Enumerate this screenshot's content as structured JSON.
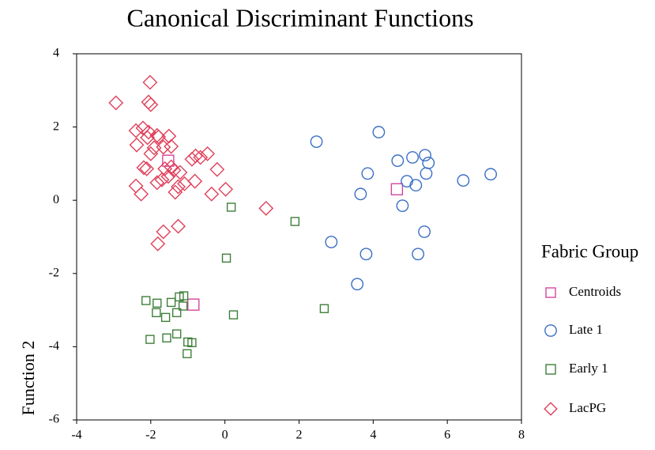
{
  "chart_data": {
    "type": "scatter",
    "title": "Canonical Discriminant Functions",
    "y_label": "Function 2",
    "legend_title": "Fabric Group",
    "legend_position": "right",
    "xlim": [
      -4,
      8
    ],
    "xticks": [
      -4,
      -2,
      0,
      2,
      4,
      6,
      8
    ],
    "ylim": [
      -6,
      4
    ],
    "yticks": [
      -6,
      -4,
      -2,
      0,
      2,
      4
    ],
    "series": [
      {
        "name": "Centroids",
        "color": "#d6469c",
        "marker": "square",
        "x": [
          -1.53,
          4.64,
          -0.85
        ],
        "values": [
          1.08,
          0.3,
          -2.85
        ]
      },
      {
        "name": "Late 1",
        "color": "#3a6fc4",
        "marker": "circle",
        "x": [
          2.47,
          4.15,
          4.66,
          5.06,
          5.4,
          5.49,
          5.43,
          3.85,
          4.91,
          5.15,
          6.43,
          7.17,
          3.66,
          4.79,
          2.87,
          3.81,
          5.21,
          5.38,
          3.57
        ],
        "values": [
          1.6,
          1.86,
          1.08,
          1.17,
          1.23,
          1.02,
          0.73,
          0.73,
          0.52,
          0.41,
          0.54,
          0.71,
          0.17,
          -0.15,
          -1.14,
          -1.47,
          -1.47,
          -0.86,
          -2.29
        ]
      },
      {
        "name": "Early 1",
        "color": "#3f7f3a",
        "marker": "square",
        "x": [
          0.17,
          1.89,
          0.04,
          2.68,
          0.23,
          -2.13,
          -1.83,
          -1.45,
          -1.23,
          -1.11,
          -1.13,
          -1.85,
          -1.3,
          -1.6,
          -2.02,
          -1.57,
          -1.3,
          -1.0,
          -0.89,
          -1.02
        ],
        "values": [
          -0.19,
          -0.58,
          -1.58,
          -2.96,
          -3.13,
          -2.74,
          -2.81,
          -2.79,
          -2.64,
          -2.61,
          -2.89,
          -3.07,
          -3.07,
          -3.2,
          -3.8,
          -3.76,
          -3.65,
          -3.87,
          -3.89,
          -4.19
        ]
      },
      {
        "name": "LacPG",
        "color": "#e0405a",
        "marker": "diamond",
        "x": [
          -2.94,
          -2.02,
          -2.06,
          -2.0,
          -2.4,
          -2.21,
          -2.06,
          -2.09,
          -1.83,
          -1.79,
          -1.51,
          -2.38,
          -1.91,
          -2.0,
          -1.66,
          -1.45,
          -0.47,
          -0.79,
          -0.66,
          -0.89,
          -2.19,
          -2.11,
          -1.62,
          -1.45,
          -1.38,
          -1.21,
          -0.21,
          -1.83,
          -1.7,
          -1.53,
          -1.09,
          -0.81,
          -1.26,
          -2.4,
          -2.26,
          -1.34,
          -0.36,
          0.02,
          1.11,
          -1.26,
          -1.66,
          -1.81
        ],
        "values": [
          2.66,
          3.22,
          2.68,
          2.61,
          1.9,
          1.97,
          1.86,
          1.71,
          1.77,
          1.73,
          1.75,
          1.51,
          1.43,
          1.27,
          1.45,
          1.47,
          1.27,
          1.21,
          1.17,
          1.12,
          0.89,
          0.86,
          0.86,
          0.91,
          0.82,
          0.76,
          0.84,
          0.48,
          0.56,
          0.65,
          0.45,
          0.52,
          0.37,
          0.39,
          0.17,
          0.22,
          0.17,
          0.3,
          -0.22,
          -0.71,
          -0.86,
          -1.19
        ]
      }
    ]
  }
}
